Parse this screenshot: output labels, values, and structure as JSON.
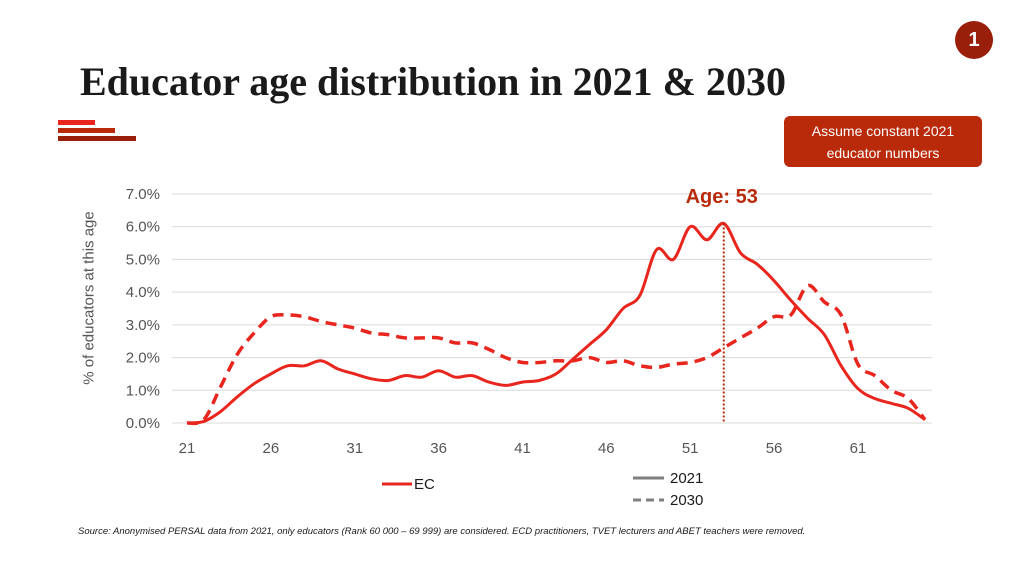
{
  "page_number": "1",
  "title": "Educator age distribution in 2021 & 2030",
  "callout": {
    "line1": "Assume constant 2021",
    "line2": "educator numbers"
  },
  "source": "Source: Anonymised PERSAL data from 2021, only educators (Rank 60 000 – 69 999) are considered. ECD practitioners, TVET lecturers and ABET teachers were removed.",
  "colors": {
    "accent": "#b82a0a",
    "dark_red": "#9a1f0b",
    "series": "#e8261e",
    "grid": "#d9d9d9"
  },
  "chart_data": {
    "type": "line",
    "title": "",
    "xlabel": "",
    "ylabel": "% of educators at this age",
    "xlim": [
      21,
      65
    ],
    "ylim": [
      0,
      7
    ],
    "x_ticks": [
      21,
      26,
      31,
      36,
      41,
      46,
      51,
      56,
      61
    ],
    "y_ticks": [
      "0.0%",
      "1.0%",
      "2.0%",
      "3.0%",
      "4.0%",
      "5.0%",
      "6.0%",
      "7.0%"
    ],
    "annotation": {
      "label": "Age: 53",
      "x": 53
    },
    "legend": {
      "series_label": "EC",
      "solid_label": "2021",
      "dashed_label": "2030"
    },
    "series": [
      {
        "name": "2021",
        "style": "solid",
        "x": [
          21,
          22,
          23,
          24,
          25,
          26,
          27,
          28,
          29,
          30,
          31,
          32,
          33,
          34,
          35,
          36,
          37,
          38,
          39,
          40,
          41,
          42,
          43,
          44,
          45,
          46,
          47,
          48,
          49,
          50,
          51,
          52,
          53,
          54,
          55,
          56,
          57,
          58,
          59,
          60,
          61,
          62,
          63,
          64,
          65
        ],
        "values": [
          0.0,
          0.05,
          0.35,
          0.8,
          1.2,
          1.5,
          1.75,
          1.75,
          1.9,
          1.65,
          1.5,
          1.35,
          1.3,
          1.45,
          1.4,
          1.6,
          1.4,
          1.45,
          1.25,
          1.15,
          1.25,
          1.3,
          1.5,
          1.95,
          2.4,
          2.85,
          3.5,
          3.9,
          5.3,
          5.0,
          6.0,
          5.6,
          6.1,
          5.2,
          4.85,
          4.35,
          3.75,
          3.2,
          2.7,
          1.75,
          1.05,
          0.75,
          0.6,
          0.45,
          0.1
        ]
      },
      {
        "name": "2030",
        "style": "dashed",
        "x": [
          21,
          22,
          23,
          24,
          25,
          26,
          27,
          28,
          29,
          30,
          31,
          32,
          33,
          34,
          35,
          36,
          37,
          38,
          39,
          40,
          41,
          42,
          43,
          44,
          45,
          46,
          47,
          48,
          49,
          50,
          51,
          52,
          53,
          54,
          55,
          56,
          57,
          58,
          59,
          60,
          61,
          62,
          63,
          64,
          65
        ],
        "values": [
          0.0,
          0.1,
          1.1,
          2.1,
          2.75,
          3.25,
          3.3,
          3.25,
          3.1,
          3.0,
          2.9,
          2.75,
          2.7,
          2.6,
          2.6,
          2.6,
          2.45,
          2.45,
          2.25,
          2.0,
          1.85,
          1.85,
          1.9,
          1.9,
          2.0,
          1.85,
          1.9,
          1.75,
          1.7,
          1.8,
          1.85,
          2.0,
          2.3,
          2.6,
          2.9,
          3.25,
          3.3,
          4.2,
          3.7,
          3.3,
          1.8,
          1.45,
          1.0,
          0.75,
          0.1
        ]
      }
    ]
  }
}
